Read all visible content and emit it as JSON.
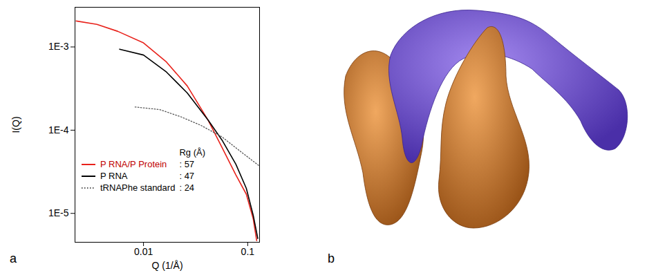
{
  "chart_data": {
    "type": "line",
    "panel_label": "a",
    "x_label": "Q (1/Å)",
    "y_label": "I(Q)",
    "log": true,
    "grid": false,
    "legend": "lower left",
    "legend_title": "Rg (Å)",
    "legend_separator": ":",
    "xlim": [
      0.0022,
      0.13
    ],
    "xticks": [
      0.01,
      0.1
    ],
    "ylim": [
      4.5e-06,
      0.003
    ],
    "yticks": [
      {
        "value": 0.001,
        "label": "1E-3"
      },
      {
        "value": 0.0001,
        "label": "1E-4"
      },
      {
        "value": 1e-05,
        "label": "1E-5"
      }
    ],
    "series": [
      {
        "name": "P RNA/P Protein",
        "rg": 57,
        "color": "#e8221b",
        "line_style": "solid",
        "x": [
          0.00226,
          0.00357,
          0.00567,
          0.01,
          0.0166,
          0.0263,
          0.0417,
          0.0567,
          0.077,
          0.097,
          0.113,
          0.122
        ],
        "values": [
          0.00205,
          0.00187,
          0.00154,
          0.00112,
          0.00066,
          0.00034,
          0.000132,
          6.2e-05,
          2.9e-05,
          1.7e-05,
          8.6e-06,
          4.7e-06
        ]
      },
      {
        "name": "P RNA",
        "rg": 47,
        "color": "#000000",
        "line_style": "solid",
        "x": [
          0.0059,
          0.01,
          0.0166,
          0.0263,
          0.0417,
          0.0567,
          0.077,
          0.097,
          0.113,
          0.125
        ],
        "values": [
          0.00094,
          0.0008,
          0.0005,
          0.00028,
          0.000132,
          7.6e-05,
          3.9e-05,
          2e-05,
          9.5e-06,
          5e-06
        ]
      },
      {
        "name": "tRNAPhe standard",
        "rg": 24,
        "color": "#555555",
        "line_style": "dotted",
        "x": [
          0.0083,
          0.0142,
          0.0225,
          0.0357,
          0.0567,
          0.083,
          0.13
        ],
        "values": [
          0.00019,
          0.000177,
          0.000146,
          0.000114,
          8.3e-05,
          5.7e-05,
          3.7e-05
        ]
      }
    ]
  },
  "panel_b": {
    "panel_label": "b"
  }
}
